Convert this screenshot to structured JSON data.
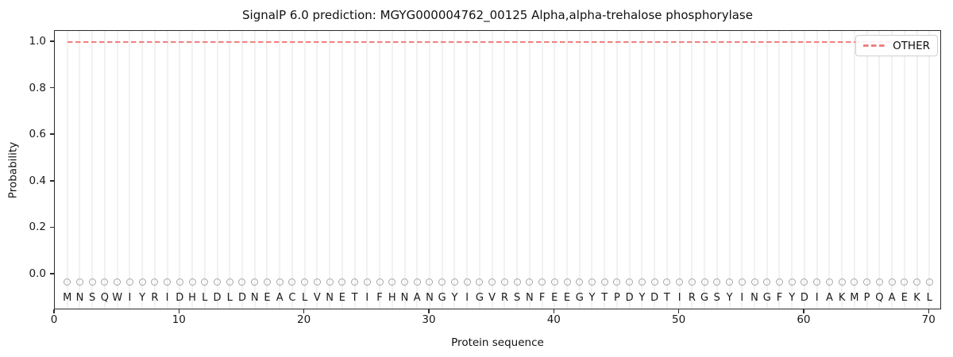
{
  "chart_data": {
    "type": "line",
    "title": "SignalP 6.0 prediction: MGYG000004762_00125 Alpha,alpha-trehalose phosphorylase",
    "xlabel": "Protein sequence",
    "ylabel": "Probability",
    "xlim": [
      0,
      71
    ],
    "ylim": [
      -0.154,
      1.048
    ],
    "x_ticks": [
      {
        "value": 0,
        "label": "0"
      },
      {
        "value": 10,
        "label": "10"
      },
      {
        "value": 20,
        "label": "20"
      },
      {
        "value": 30,
        "label": "30"
      },
      {
        "value": 40,
        "label": "40"
      },
      {
        "value": 50,
        "label": "50"
      },
      {
        "value": 60,
        "label": "60"
      },
      {
        "value": 70,
        "label": "70"
      }
    ],
    "y_ticks": [
      {
        "value": 0.0,
        "label": "0.0"
      },
      {
        "value": 0.2,
        "label": "0.2"
      },
      {
        "value": 0.4,
        "label": "0.4"
      },
      {
        "value": 0.6,
        "label": "0.6"
      },
      {
        "value": 0.8,
        "label": "0.8"
      },
      {
        "value": 1.0,
        "label": "1.0"
      }
    ],
    "grid": {
      "vertical_per_residue": true,
      "color": "#f1f1f1"
    },
    "series": [
      {
        "name": "OTHER",
        "color": "#f08080",
        "linestyle": "dashed",
        "x": [
          1,
          70
        ],
        "y": [
          1.0,
          1.0
        ],
        "description": "constant probability 1.0 across all 70 residues"
      }
    ],
    "sequence": {
      "residues": "MNSQWIYRIDHLDLDNEACLVNETIFHNANGYIGVRSNFEEGYTPDYDTIRGSYINGFYDIAKMPQAEKL",
      "start_position": 1,
      "end_position": 70,
      "marker": "open-circle",
      "marker_color": "#a6a6a6",
      "marker_y": -0.034,
      "letter_y": -0.1,
      "letter_color": "#1a1a1a"
    },
    "legend": {
      "position": "upper right",
      "entries": [
        {
          "label": "OTHER",
          "color": "#f08080",
          "linestyle": "dashed"
        }
      ]
    },
    "colors": {
      "background": "#ffffff",
      "spine": "#2b2b2b",
      "other_line": "#f08080",
      "gridline": "#f1f1f1"
    }
  }
}
